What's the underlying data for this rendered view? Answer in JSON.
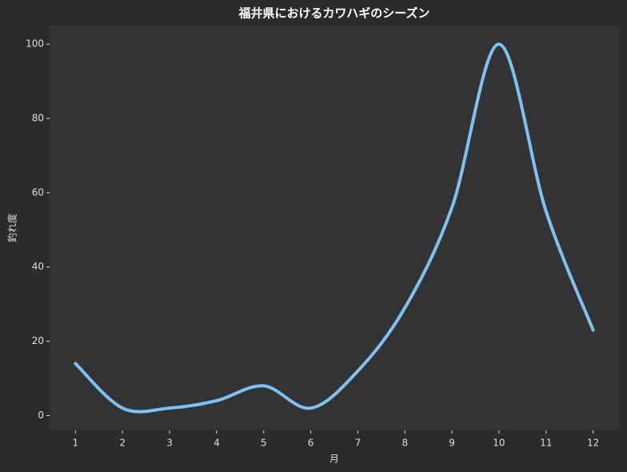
{
  "chart_data": {
    "type": "line",
    "title": "福井県におけるカワハギのシーズン",
    "x_label": "月",
    "y_label": "釣れ度",
    "x": [
      1,
      2,
      3,
      4,
      5,
      6,
      7,
      8,
      9,
      10,
      11,
      12
    ],
    "series": [
      {
        "name": "釣れ度",
        "color": "#7cc3f3",
        "values": [
          14,
          2,
          2,
          4,
          8,
          2,
          12,
          29,
          56,
          100,
          55,
          23
        ]
      }
    ],
    "xlim": [
      0.45,
      12.55
    ],
    "ylim": [
      -4,
      105
    ],
    "xticks": [
      1,
      2,
      3,
      4,
      5,
      6,
      7,
      8,
      9,
      10,
      11,
      12
    ],
    "yticks": [
      0,
      20,
      40,
      60,
      80,
      100
    ],
    "grid": false
  }
}
